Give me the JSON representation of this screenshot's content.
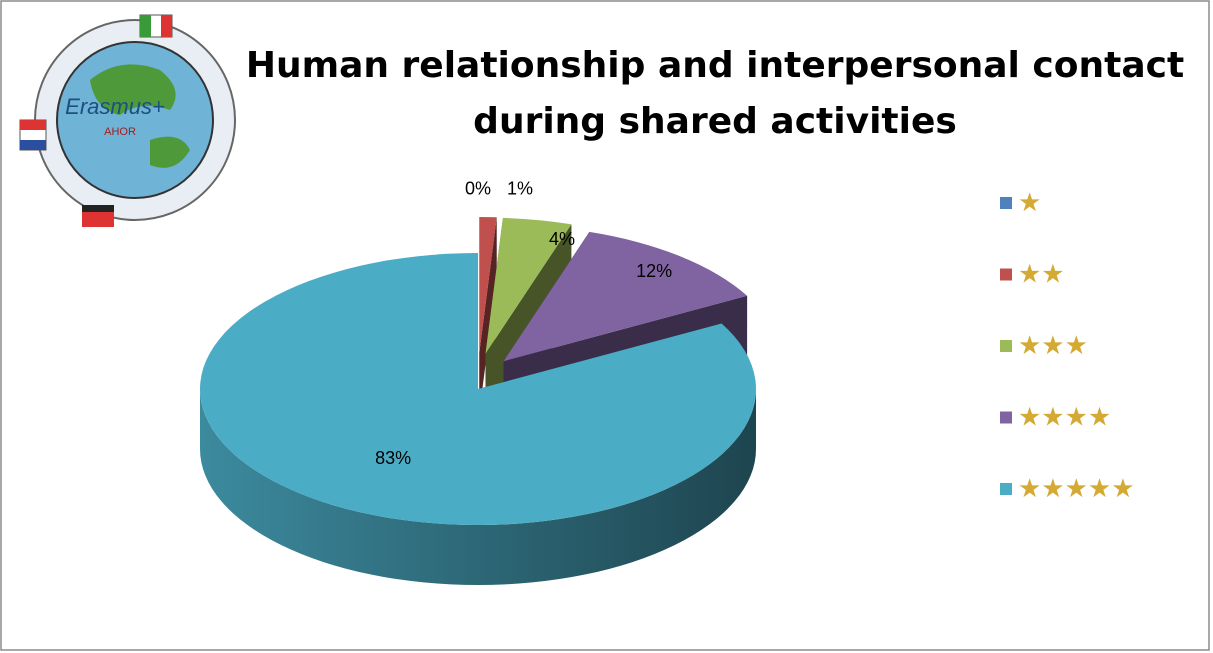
{
  "logo": {
    "name": "Erasmus+",
    "subtitle": "AHOR"
  },
  "chart_data": {
    "type": "pie3d",
    "title": "Human relationship and interpersonal contact during shared activities",
    "categories": [
      "★",
      "★★",
      "★★★",
      "★★★★",
      "★★★★★"
    ],
    "values": [
      0,
      1,
      4,
      12,
      83
    ],
    "value_labels": [
      "0%",
      "1%",
      "4%",
      "12%",
      "83%"
    ],
    "colors": [
      "#4f81bd",
      "#c0504d",
      "#9bbb59",
      "#8064a2",
      "#4bacc6"
    ],
    "legend": "right",
    "legend_text_color": "#d4a934"
  }
}
